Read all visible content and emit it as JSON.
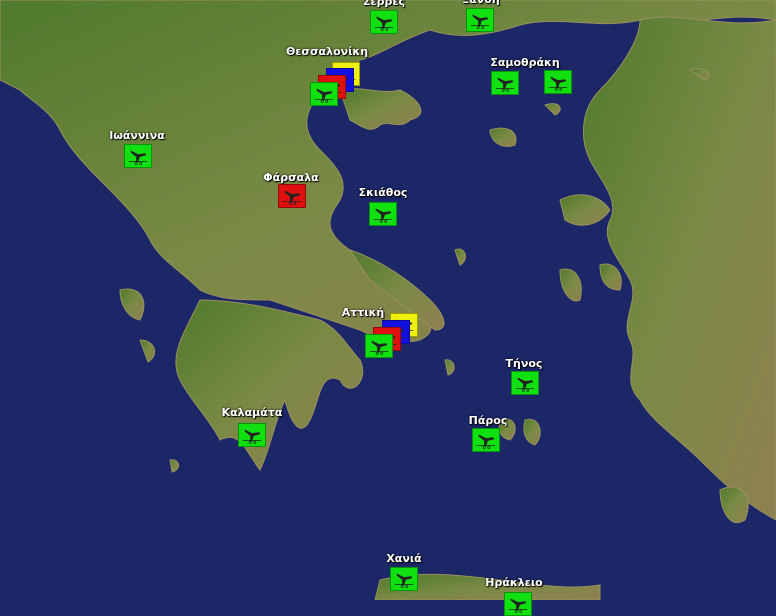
{
  "colors": {
    "sea": "#1b2766",
    "land": "#5f7f35",
    "green": "#10e010",
    "red": "#e01010",
    "blue": "#1010e0",
    "yellow": "#f0f010"
  },
  "icon": "airplane-icon",
  "locations": [
    {
      "name": "Σέρρες",
      "markers": [
        "green"
      ]
    },
    {
      "name": "Ξάνθη",
      "markers": [
        "green"
      ]
    },
    {
      "name": "Θεσσαλονίκη",
      "markers": [
        "yellow",
        "blue",
        "red",
        "green"
      ]
    },
    {
      "name": "Σαμοθράκη",
      "markers": [
        "green",
        "green"
      ]
    },
    {
      "name": "Ιωάννινα",
      "markers": [
        "green"
      ]
    },
    {
      "name": "Φάρσαλα",
      "markers": [
        "red"
      ]
    },
    {
      "name": "Σκιάθος",
      "markers": [
        "green"
      ]
    },
    {
      "name": "Αττική",
      "markers": [
        "yellow",
        "blue",
        "red",
        "green"
      ]
    },
    {
      "name": "Τήνος",
      "markers": [
        "green"
      ]
    },
    {
      "name": "Πάρος",
      "markers": [
        "green"
      ]
    },
    {
      "name": "Καλαμάτα",
      "markers": [
        "green"
      ]
    },
    {
      "name": "Χανιά",
      "markers": [
        "green"
      ]
    },
    {
      "name": "Ηράκλειο",
      "markers": [
        "green"
      ]
    }
  ]
}
